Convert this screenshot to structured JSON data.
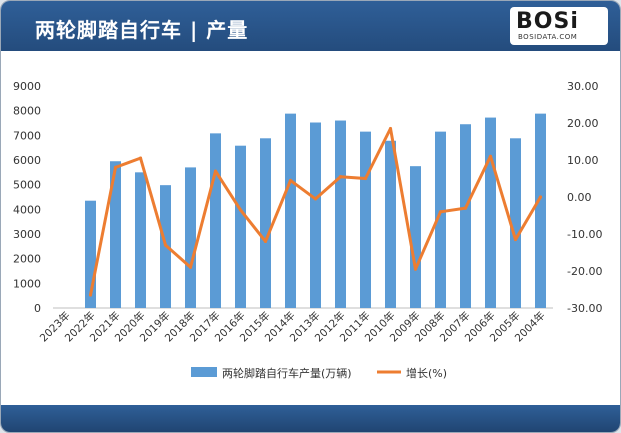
{
  "header": {
    "title": "两轮脚踏自行车 | 产量"
  },
  "logo": {
    "text": "BOSi",
    "subtitle": "BOSIDATA.COM"
  },
  "colors": {
    "bar": "#5b9bd5",
    "line": "#ed7d31",
    "header": "#2a5588"
  },
  "chart_data": {
    "type": "bar+line",
    "categories": [
      "2023年",
      "2022年",
      "2021年",
      "2020年",
      "2019年",
      "2018年",
      "2017年",
      "2016年",
      "2015年",
      "2014年",
      "2013年",
      "2012年",
      "2011年",
      "2010年",
      "2009年",
      "2008年",
      "2007年",
      "2006年",
      "2005年",
      "2004年"
    ],
    "series": [
      {
        "name": "两轮脚踏自行车产量(万辆)",
        "type": "bar",
        "axis": "left",
        "values": [
          null,
          4350,
          5950,
          5500,
          4980,
          5700,
          7080,
          6580,
          6880,
          7880,
          7520,
          7600,
          7150,
          6780,
          5750,
          7150,
          7450,
          7720,
          6880,
          7880
        ]
      },
      {
        "name": "增长(%)",
        "type": "line",
        "axis": "right",
        "values": [
          null,
          -26.5,
          8.0,
          10.5,
          -13.0,
          -19.0,
          7.0,
          -3.5,
          -12.0,
          4.5,
          -0.5,
          5.5,
          5.0,
          18.5,
          -19.5,
          -4.0,
          -3.0,
          11.0,
          -11.5,
          0.0
        ]
      }
    ],
    "y_left": {
      "min": 0,
      "max": 9000,
      "step": 1000
    },
    "y_right": {
      "min": -30,
      "max": 30,
      "step": 10,
      "ticks": [
        "30.00",
        "20.00",
        "10.00",
        "0.00",
        "-10.00",
        "-20.00",
        "-30.00"
      ]
    },
    "legend": {
      "position": "bottom",
      "items": [
        "两轮脚踏自行车产量(万辆)",
        "增长(%)"
      ]
    }
  }
}
